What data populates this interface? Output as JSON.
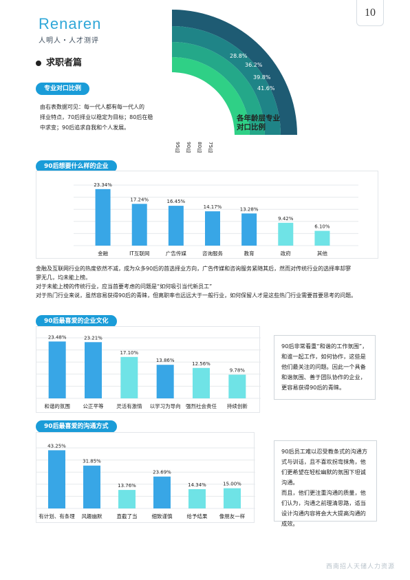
{
  "header": {
    "logo_word": "Renaren",
    "logo_sub": "人明人・人才测评",
    "page_number": "10"
  },
  "section": {
    "title": "求职者篇"
  },
  "tags": {
    "tag1": "专业对口比例",
    "tag2": "90后想要什么样的企业",
    "tag3": "90后最喜爱的企业文化",
    "tag4": "90后最喜爱的沟通方式"
  },
  "intro": {
    "line1": "由右表数据可见：每一代人都有每一代人的",
    "line2": "择业特点，70后择业以稳定为目标；80后在稳",
    "line3": "中求变；90后追求自我和个人发展。"
  },
  "fan_chart": {
    "title_line1": "各年龄层专业",
    "title_line2": "对口比例",
    "rings": [
      {
        "label": "95后",
        "value": "28.8%",
        "color": "#1e5b73"
      },
      {
        "label": "90后",
        "value": "36.2%",
        "color": "#1f8487"
      },
      {
        "label": "80后",
        "value": "39.8%",
        "color": "#24a889"
      },
      {
        "label": "75后",
        "value": "41.6%",
        "color": "#2fd086"
      }
    ]
  },
  "chart_data": [
    {
      "type": "bar",
      "categories": [
        "金融",
        "IT互联网",
        "广告传媒",
        "咨询服务",
        "教育",
        "政府",
        "其他"
      ],
      "values": [
        23.34,
        17.24,
        16.45,
        14.17,
        13.28,
        9.42,
        6.1
      ],
      "value_labels": [
        "23.34%",
        "17.24%",
        "16.45%",
        "14.17%",
        "13.28%",
        "9.42%",
        "6.10%"
      ],
      "colors": [
        "#38a6e6",
        "#38a6e6",
        "#38a6e6",
        "#38a6e6",
        "#38a6e6",
        "#6fe3e6",
        "#6fe3e6"
      ],
      "ylim": [
        0,
        25
      ],
      "grid": true
    },
    {
      "type": "bar",
      "categories": [
        "和谐的氛围",
        "公正平等",
        "灵活有激情",
        "以学习为导向",
        "强烈社会责任",
        "持续创新"
      ],
      "values": [
        23.48,
        23.21,
        17.1,
        13.86,
        12.56,
        9.78
      ],
      "value_labels": [
        "23.48%",
        "23.21%",
        "17.10%",
        "13.86%",
        "12.56%",
        "9.78%"
      ],
      "colors": [
        "#38a6e6",
        "#38a6e6",
        "#6fe3e6",
        "#38a6e6",
        "#6fe3e6",
        "#6fe3e6"
      ],
      "ylim": [
        0,
        25
      ],
      "grid": true
    },
    {
      "type": "bar",
      "categories": [
        "有计划、有条理",
        "风趣幽默",
        "直截了当",
        "细致谨慎",
        "给予结果",
        "像朋友一样"
      ],
      "values": [
        43.25,
        31.85,
        13.76,
        23.69,
        14.34,
        15.0
      ],
      "value_labels": [
        "43.25%",
        "31.85%",
        "13.76%",
        "23.69%",
        "14.34%",
        "15.00%"
      ],
      "colors": [
        "#38a6e6",
        "#38a6e6",
        "#6fe3e6",
        "#38a6e6",
        "#6fe3e6",
        "#6fe3e6"
      ],
      "ylim": [
        0,
        45
      ],
      "grid": true
    }
  ],
  "analysis": {
    "line1": "金融及互联网行业的热度依然不减，成为众多90后的首选择业方向，广告传媒和咨询服务紧随其后，然而对传统行业的选择率却寥",
    "line2": "寥无几，均未能上榜。",
    "line3": "对于未能上榜的传统行业，应当首要考虑的问题是“如何吸引当代新员工”",
    "line4": "对于热门行业来说，虽然容易获得90后的青睐，但离职率也远远大于一般行业，如何保留人才是这些热门行业需要首要思考的问题。"
  },
  "note1": {
    "text": "90后非常看重“和谐的工作氛围”，和谁一起工作，如何协作，这些是他们最关注的问题。因此一个具备和谐氛围、善于团队协作的企业，更容易获得90后的青睐。"
  },
  "note2": {
    "p1": "90后员工难以忍受教条式的沟通方式与训话，且不喜欢拐弯抹角，他们更希望在轻松幽默的氛围下坦诚沟通。",
    "p2": "而且，他们更注重沟通的质量，他们认为，沟通之前理清思路，适当设计沟通内容将会大大提高沟通的成效。"
  },
  "footer": {
    "text": "西南招人天储人力资源"
  }
}
